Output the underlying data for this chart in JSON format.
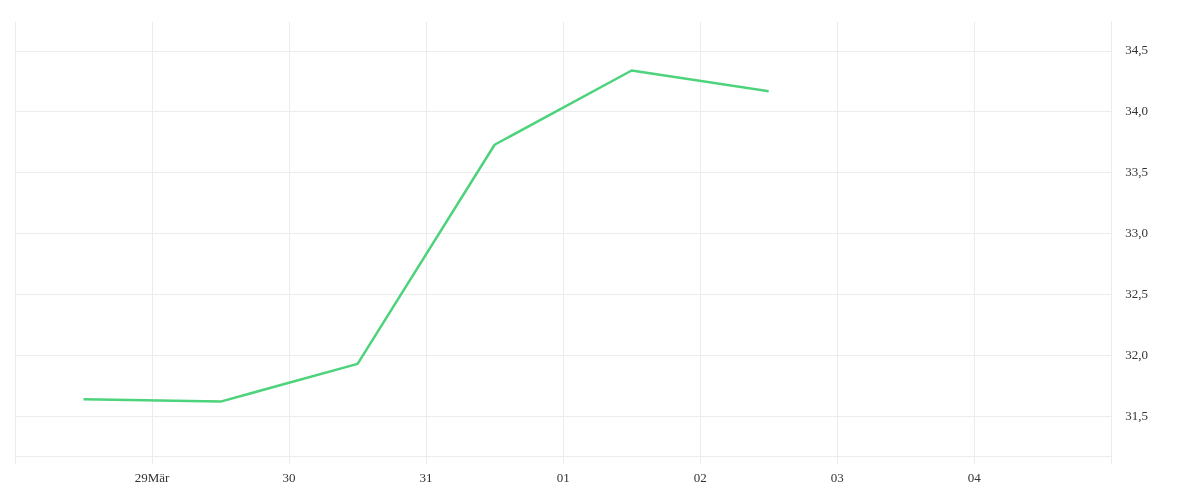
{
  "chart_data": {
    "type": "line",
    "x": [
      "--03-28T12:00",
      "--03-29T12:00",
      "--03-30T12:00",
      "--03-31T12:00",
      "--04-01T12:00",
      "--04-02T12:00"
    ],
    "series": [
      {
        "color": "#4cd37b",
        "values": [
          31.64,
          31.62,
          31.93,
          33.73,
          34.34,
          34.17
        ]
      }
    ],
    "xlim": [
      "--03-28",
      "--04-05"
    ],
    "xticks": [
      {
        "value": "--03-28",
        "label": null
      },
      {
        "value": "--03-29",
        "label": "29Mär"
      },
      {
        "value": "--03-30",
        "label": "30"
      },
      {
        "value": "--03-31",
        "label": "31"
      },
      {
        "value": "--04-01",
        "label": "01"
      },
      {
        "value": "--04-02",
        "label": "02"
      },
      {
        "value": "--04-03",
        "label": "03"
      },
      {
        "value": "--04-04",
        "label": "04"
      },
      {
        "value": "--04-05",
        "label": null
      }
    ],
    "ylim": [
      31.17,
      34.74
    ],
    "yticks": [
      {
        "value": 31.5,
        "label": "31,5"
      },
      {
        "value": 32.0,
        "label": "32,0"
      },
      {
        "value": 32.5,
        "label": "32,5"
      },
      {
        "value": 33.0,
        "label": "33,0"
      },
      {
        "value": 33.5,
        "label": "33,5"
      },
      {
        "value": 34.0,
        "label": "34,0"
      },
      {
        "value": 34.5,
        "label": "34,5"
      }
    ],
    "grid": true,
    "legend": false,
    "marker": "none",
    "line_style": "solid"
  }
}
